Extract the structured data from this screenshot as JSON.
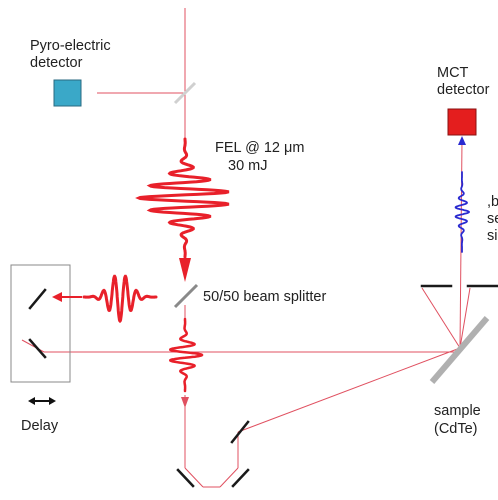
{
  "labels": {
    "pyro_line1": "Pyro-electric",
    "pyro_line2": "detector",
    "mct_line1": "MCT",
    "mct_line2": "detector",
    "fel_line1": "FEL @ 12 μm",
    "fel_line2": "30 mJ",
    "splitter": "50/50 beam splitter",
    "delay": "Delay",
    "sample_line1": "sample",
    "sample_line2": "(CdTe)",
    "partial_line1": ",b",
    "partial_line2": "se",
    "partial_line3": "si"
  },
  "colors": {
    "beam": "#e8202a",
    "thin_beam": "#e05060",
    "probe": "#2a2ad0",
    "pyro_detector": "#3aa8c8",
    "mct_detector": "#e41e1e",
    "mirror": "#1a1a1a",
    "splitter": "#8a8a8a",
    "sample": "#b0b0b0",
    "delay_box": "#888888"
  },
  "icons": {
    "delay_arrow": "double-arrow-icon"
  }
}
